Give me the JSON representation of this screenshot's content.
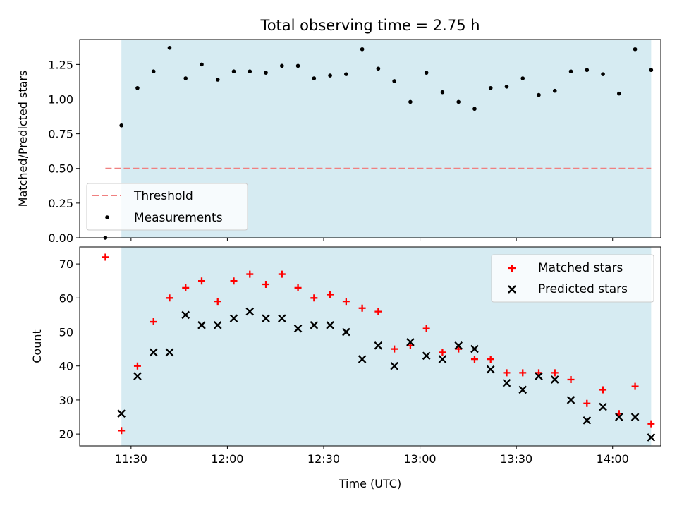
{
  "colors": {
    "shade": "#add8e6",
    "threshold": "#f08080",
    "measurements": "#000000",
    "matched": "#ff0000",
    "predicted": "#000000"
  },
  "chart_data": [
    {
      "type": "scatter",
      "title": "Total observing time = 2.75 h",
      "ylabel": "Matched/Predicted stars",
      "ylim": [
        0,
        1.43
      ],
      "xlim": [
        "11:14",
        "14:15"
      ],
      "yticks": [
        "0.00",
        "0.25",
        "0.50",
        "0.75",
        "1.00",
        "1.25"
      ],
      "shaded_region": [
        "11:27",
        "14:12"
      ],
      "legend_position": "lower-left",
      "threshold": {
        "name": "Threshold",
        "y": 0.5,
        "x": [
          "11:22",
          "14:12"
        ]
      },
      "series": [
        {
          "name": "Measurements",
          "x": [
            "11:22",
            "11:27",
            "11:32",
            "11:37",
            "11:42",
            "11:47",
            "11:52",
            "11:57",
            "12:02",
            "12:07",
            "12:12",
            "12:17",
            "12:22",
            "12:27",
            "12:32",
            "12:37",
            "12:42",
            "12:47",
            "12:52",
            "12:57",
            "13:02",
            "13:07",
            "13:12",
            "13:17",
            "13:22",
            "13:27",
            "13:32",
            "13:37",
            "13:42",
            "13:47",
            "13:52",
            "13:57",
            "14:02",
            "14:07",
            "14:12"
          ],
          "y": [
            0.0,
            0.81,
            1.08,
            1.2,
            1.37,
            1.15,
            1.25,
            1.14,
            1.2,
            1.2,
            1.19,
            1.24,
            1.24,
            1.15,
            1.17,
            1.18,
            1.36,
            1.22,
            1.13,
            0.98,
            1.19,
            1.05,
            0.98,
            0.93,
            1.08,
            1.09,
            1.15,
            1.03,
            1.06,
            1.2,
            1.21,
            1.18,
            1.04,
            1.36,
            1.21
          ]
        }
      ]
    },
    {
      "type": "scatter",
      "xlabel": "Time (UTC)",
      "ylabel": "Count",
      "ylim": [
        16.5,
        75
      ],
      "xlim": [
        "11:14",
        "14:15"
      ],
      "xticks": [
        "11:30",
        "12:00",
        "12:30",
        "13:00",
        "13:30",
        "14:00"
      ],
      "yticks": [
        "20",
        "30",
        "40",
        "50",
        "60",
        "70"
      ],
      "shaded_region": [
        "11:27",
        "14:12"
      ],
      "legend_position": "upper-right",
      "series": [
        {
          "name": "Matched stars",
          "x": [
            "11:22",
            "11:27",
            "11:32",
            "11:37",
            "11:42",
            "11:47",
            "11:52",
            "11:57",
            "12:02",
            "12:07",
            "12:12",
            "12:17",
            "12:22",
            "12:27",
            "12:32",
            "12:37",
            "12:42",
            "12:47",
            "12:52",
            "12:57",
            "13:02",
            "13:07",
            "13:12",
            "13:17",
            "13:22",
            "13:27",
            "13:32",
            "13:37",
            "13:42",
            "13:47",
            "13:52",
            "13:57",
            "14:02",
            "14:07",
            "14:12"
          ],
          "y": [
            72,
            21,
            40,
            53,
            60,
            63,
            65,
            59,
            65,
            67,
            64,
            67,
            63,
            60,
            61,
            59,
            57,
            56,
            45,
            46,
            51,
            44,
            45,
            42,
            42,
            38,
            38,
            38,
            38,
            36,
            29,
            33,
            26,
            34,
            23
          ]
        },
        {
          "name": "Predicted stars",
          "x": [
            "11:27",
            "11:32",
            "11:37",
            "11:42",
            "11:47",
            "11:52",
            "11:57",
            "12:02",
            "12:07",
            "12:12",
            "12:17",
            "12:22",
            "12:27",
            "12:32",
            "12:37",
            "12:42",
            "12:47",
            "12:52",
            "12:57",
            "13:02",
            "13:07",
            "13:12",
            "13:17",
            "13:22",
            "13:27",
            "13:32",
            "13:37",
            "13:42",
            "13:47",
            "13:52",
            "13:57",
            "14:02",
            "14:07",
            "14:12"
          ],
          "y": [
            26,
            37,
            44,
            44,
            55,
            52,
            52,
            54,
            56,
            54,
            54,
            51,
            52,
            52,
            50,
            42,
            46,
            40,
            47,
            43,
            42,
            46,
            45,
            39,
            35,
            33,
            37,
            36,
            30,
            24,
            28,
            25,
            25,
            19
          ]
        }
      ]
    }
  ]
}
